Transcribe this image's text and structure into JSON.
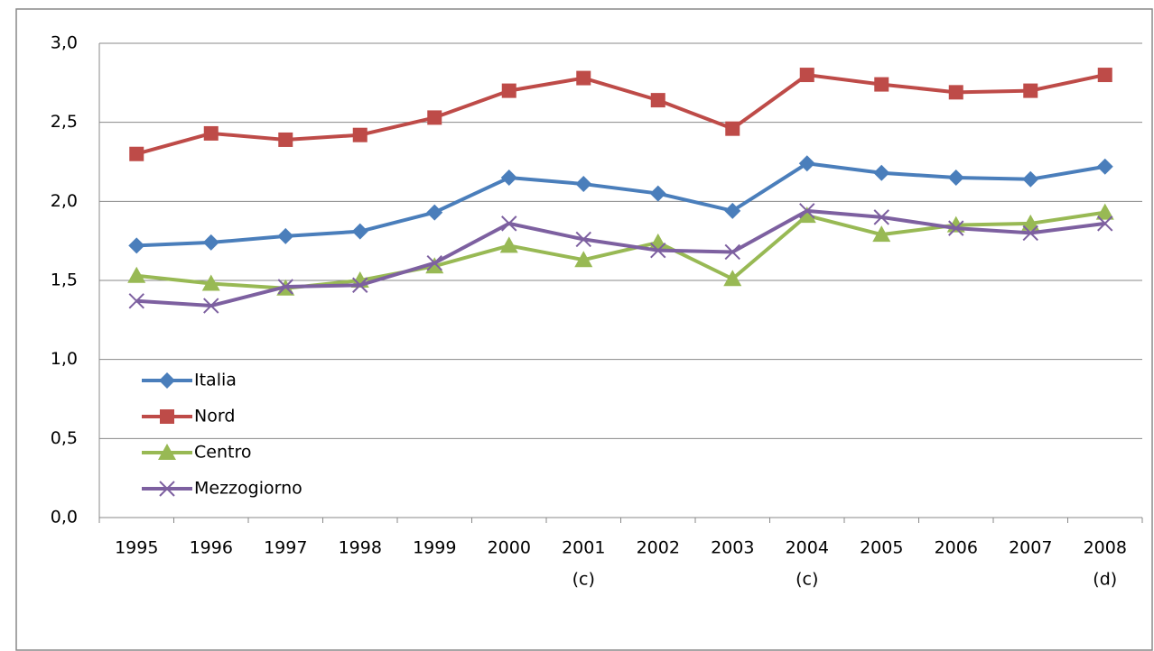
{
  "chart_data": {
    "type": "line",
    "categories": [
      "1995",
      "1996",
      "1997",
      "1998",
      "1999",
      "2000",
      "2001",
      "2002",
      "2003",
      "2004",
      "2005",
      "2006",
      "2007",
      "2008"
    ],
    "category_notes": [
      null,
      null,
      null,
      null,
      null,
      null,
      "(c)",
      null,
      null,
      "(c)",
      null,
      null,
      null,
      "(d)"
    ],
    "series": [
      {
        "name": "Italia",
        "color": "#4a7ebb",
        "marker": "diamond",
        "values": [
          1.72,
          1.74,
          1.78,
          1.81,
          1.93,
          2.15,
          2.11,
          2.05,
          1.94,
          2.24,
          2.18,
          2.15,
          2.14,
          2.22
        ]
      },
      {
        "name": "Nord",
        "color": "#be4b48",
        "marker": "square",
        "values": [
          2.3,
          2.43,
          2.39,
          2.42,
          2.53,
          2.7,
          2.78,
          2.64,
          2.46,
          2.8,
          2.74,
          2.69,
          2.7,
          2.8
        ]
      },
      {
        "name": "Centro",
        "color": "#98b954",
        "marker": "triangle",
        "values": [
          1.53,
          1.48,
          1.45,
          1.5,
          1.59,
          1.72,
          1.63,
          1.74,
          1.51,
          1.91,
          1.79,
          1.85,
          1.86,
          1.93
        ]
      },
      {
        "name": "Mezzogiorno",
        "color": "#7d60a0",
        "marker": "x",
        "values": [
          1.37,
          1.34,
          1.46,
          1.47,
          1.61,
          1.86,
          1.76,
          1.69,
          1.68,
          1.94,
          1.9,
          1.83,
          1.8,
          1.86
        ]
      }
    ],
    "ylim": [
      0,
      3
    ],
    "yticks": [
      {
        "value": 0,
        "label": "0,0"
      },
      {
        "value": 0.5,
        "label": "0,5"
      },
      {
        "value": 1,
        "label": "1,0"
      },
      {
        "value": 1.5,
        "label": "1,5"
      },
      {
        "value": 2,
        "label": "2,0"
      },
      {
        "value": 2.5,
        "label": "2,5"
      },
      {
        "value": 3,
        "label": "3,0"
      }
    ],
    "grid": true,
    "legend": "lower-left"
  }
}
